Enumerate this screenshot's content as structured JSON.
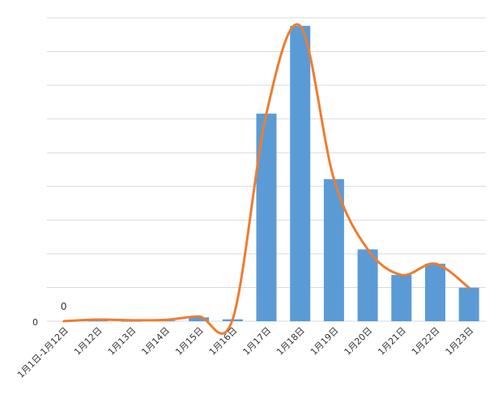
{
  "chart_data": {
    "type": "bar",
    "categories": [
      "1月1日-1月12日",
      "1月12日",
      "1月13日",
      "1月14日",
      "1月15日",
      "1月16日",
      "1月17日",
      "1月18日",
      "1月19日",
      "1月20日",
      "1月21日",
      "1月22日",
      "1月23日"
    ],
    "values": [
      0,
      0.2,
      0.1,
      0.2,
      1.2,
      0.6,
      65,
      92.5,
      44.5,
      22.5,
      14.5,
      18,
      10.5
    ],
    "trend_line": [
      0,
      0.5,
      0.3,
      0.4,
      1.5,
      0.6,
      65,
      92.5,
      44.5,
      22.5,
      14.5,
      18,
      10.5
    ],
    "ylim": [
      0,
      95
    ],
    "y_tick_label": "0",
    "data_labels": [
      {
        "index": 0,
        "text": "0"
      }
    ],
    "grid": true,
    "colors": {
      "bar": "#5b9bd5",
      "line": "#ed7d31",
      "grid": "#d9d9d9"
    }
  }
}
